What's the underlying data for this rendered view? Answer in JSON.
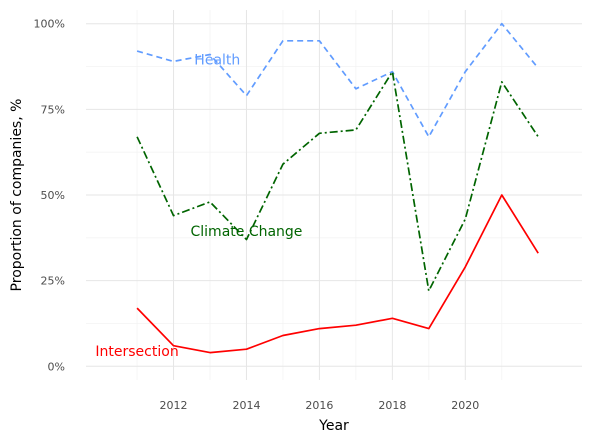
{
  "chart_data": {
    "type": "line",
    "title": "",
    "xlabel": "Year",
    "ylabel": "Proportion of companies, %",
    "x": [
      2011,
      2012,
      2013,
      2014,
      2015,
      2016,
      2017,
      2018,
      2019,
      2020,
      2021,
      2022
    ],
    "xlim": [
      2009.6,
      2023.2
    ],
    "ylim": [
      -0.04,
      1.04
    ],
    "x_ticks": [
      2012,
      2014,
      2016,
      2018,
      2020
    ],
    "x_tick_labels": [
      "2012",
      "2014",
      "2016",
      "2018",
      "2020"
    ],
    "y_ticks": [
      0,
      0.25,
      0.5,
      0.75,
      1.0
    ],
    "y_tick_labels": [
      "0%",
      "25%",
      "50%",
      "75%",
      "100%"
    ],
    "grid": true,
    "legend": "none",
    "series": [
      {
        "name": "Health",
        "color": "#619cff",
        "dash": "dashed",
        "values": [
          0.92,
          0.89,
          0.91,
          0.79,
          0.95,
          0.95,
          0.81,
          0.86,
          0.67,
          0.86,
          1.0,
          0.87
        ],
        "label_at": {
          "x": 2013.2,
          "y": 0.895
        }
      },
      {
        "name": "Climate Change",
        "color": "#006400",
        "dash": "dotdash",
        "values": [
          0.67,
          0.44,
          0.48,
          0.37,
          0.59,
          0.68,
          0.69,
          0.86,
          0.22,
          0.43,
          0.83,
          0.67
        ],
        "label_at": {
          "x": 2014.0,
          "y": 0.395
        }
      },
      {
        "name": "Intersection",
        "color": "#ff0000",
        "dash": "solid",
        "values": [
          0.17,
          0.06,
          0.04,
          0.05,
          0.09,
          0.11,
          0.12,
          0.14,
          0.11,
          0.29,
          0.5,
          0.33
        ],
        "label_at": {
          "x": 2011.0,
          "y": 0.045
        }
      }
    ]
  }
}
